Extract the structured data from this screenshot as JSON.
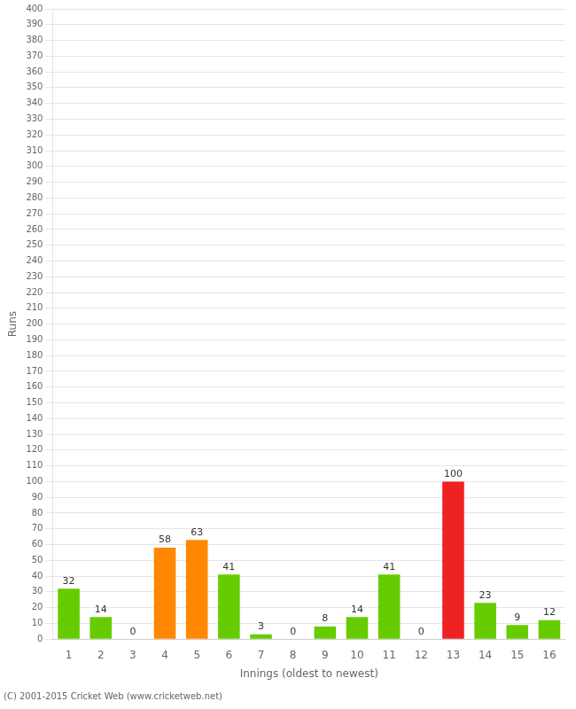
{
  "chart_data": {
    "type": "bar",
    "categories": [
      "1",
      "2",
      "3",
      "4",
      "5",
      "6",
      "7",
      "8",
      "9",
      "10",
      "11",
      "12",
      "13",
      "14",
      "15",
      "16"
    ],
    "values": [
      32,
      14,
      0,
      58,
      63,
      41,
      3,
      0,
      8,
      14,
      41,
      0,
      100,
      23,
      9,
      12
    ],
    "colors": [
      "#66cc00",
      "#66cc00",
      "#66cc00",
      "#ff8800",
      "#ff8800",
      "#66cc00",
      "#66cc00",
      "#66cc00",
      "#66cc00",
      "#66cc00",
      "#66cc00",
      "#66cc00",
      "#ee2222",
      "#66cc00",
      "#66cc00",
      "#66cc00"
    ],
    "x_label": "Innings (oldest to newest)",
    "y_label": "Runs",
    "ylim": [
      0,
      400
    ],
    "yticks": [
      0,
      10,
      20,
      30,
      40,
      50,
      60,
      70,
      80,
      90,
      100,
      110,
      120,
      130,
      140,
      150,
      160,
      170,
      180,
      190,
      200,
      210,
      220,
      230,
      240,
      250,
      260,
      270,
      280,
      290,
      300,
      310,
      320,
      330,
      340,
      350,
      360,
      370,
      380,
      390,
      400
    ],
    "footnote": "(C) 2001-2015 Cricket Web (www.cricketweb.net)",
    "grid": true,
    "data_labels": true
  }
}
